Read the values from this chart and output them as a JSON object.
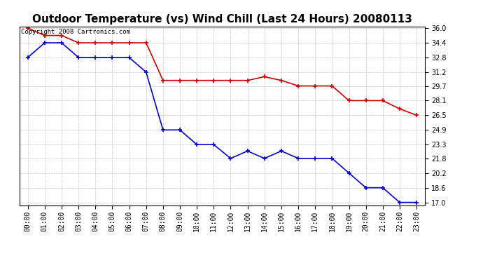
{
  "title": "Outdoor Temperature (vs) Wind Chill (Last 24 Hours) 20080113",
  "copyright_text": "Copyright 2008 Cartronics.com",
  "x_labels": [
    "00:00",
    "01:00",
    "02:00",
    "03:00",
    "04:00",
    "05:00",
    "06:00",
    "07:00",
    "08:00",
    "09:00",
    "10:00",
    "11:00",
    "12:00",
    "13:00",
    "14:00",
    "15:00",
    "16:00",
    "17:00",
    "18:00",
    "19:00",
    "20:00",
    "21:00",
    "22:00",
    "23:00"
  ],
  "temp_values": [
    36.0,
    35.2,
    35.2,
    34.4,
    34.4,
    34.4,
    34.4,
    34.4,
    30.3,
    30.3,
    30.3,
    30.3,
    30.3,
    30.3,
    30.7,
    30.3,
    29.7,
    29.7,
    29.7,
    28.1,
    28.1,
    28.1,
    27.2,
    26.5
  ],
  "windchill_values": [
    32.8,
    34.4,
    34.4,
    32.8,
    32.8,
    32.8,
    32.8,
    31.2,
    24.9,
    24.9,
    23.3,
    23.3,
    21.8,
    22.6,
    21.8,
    22.6,
    21.8,
    21.8,
    21.8,
    20.2,
    18.6,
    18.6,
    17.0,
    17.0
  ],
  "temp_color": "#cc0000",
  "windchill_color": "#0000cc",
  "bg_color": "#ffffff",
  "plot_bg_color": "#ffffff",
  "grid_color": "#aaaaaa",
  "ylim_min": 17.0,
  "ylim_max": 36.0,
  "yticks": [
    17.0,
    18.6,
    20.2,
    21.8,
    23.3,
    24.9,
    26.5,
    28.1,
    29.7,
    31.2,
    32.8,
    34.4,
    36.0
  ],
  "title_fontsize": 11,
  "tick_fontsize": 7,
  "copyright_fontsize": 6.5
}
